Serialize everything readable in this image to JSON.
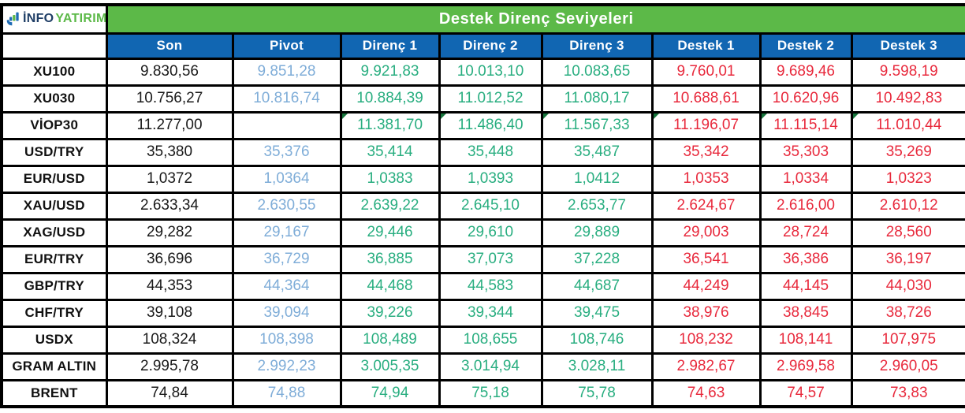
{
  "brand": {
    "name_primary": "İNFO",
    "name_secondary": "YATIRIM"
  },
  "colors": {
    "title_green": "#5CB948",
    "header_blue": "#1166B2",
    "pivot_blue": "#7FADD8",
    "resistance_green": "#29AE80",
    "support_red": "#E8293C",
    "text_black": "#1A1A1A",
    "brand_navy": "#1F3E66",
    "brand_green": "#5CB948",
    "mark_green": "#17753C"
  },
  "chart_data": {
    "type": "table",
    "title": "Destek Direnç Seviyeleri",
    "column_headers": [
      "Son",
      "Pivot",
      "Direnç 1",
      "Direnç 2",
      "Direnç 3",
      "Destek 1",
      "Destek 2",
      "Destek 3"
    ],
    "row_headers": [
      "XU100",
      "XU030",
      "VİOP30",
      "USD/TRY",
      "EUR/USD",
      "XAU/USD",
      "XAG/USD",
      "EUR/TRY",
      "GBP/TRY",
      "CHF/TRY",
      "USDX",
      "GRAM ALTIN",
      "BRENT"
    ],
    "rows": [
      [
        "9.830,56",
        "9.851,28",
        "9.921,83",
        "10.013,10",
        "10.083,65",
        "9.760,01",
        "9.689,46",
        "9.598,19"
      ],
      [
        "10.756,27",
        "10.816,74",
        "10.884,39",
        "11.012,52",
        "11.080,17",
        "10.688,61",
        "10.620,96",
        "10.492,83"
      ],
      [
        "11.277,00",
        "",
        "11.381,70",
        "11.486,40",
        "11.567,33",
        "11.196,07",
        "11.115,14",
        "11.010,44"
      ],
      [
        "35,380",
        "35,376",
        "35,414",
        "35,448",
        "35,487",
        "35,342",
        "35,303",
        "35,269"
      ],
      [
        "1,0372",
        "1,0364",
        "1,0383",
        "1,0393",
        "1,0412",
        "1,0353",
        "1,0334",
        "1,0323"
      ],
      [
        "2.633,34",
        "2.630,55",
        "2.639,22",
        "2.645,10",
        "2.653,77",
        "2.624,67",
        "2.616,00",
        "2.610,12"
      ],
      [
        "29,282",
        "29,167",
        "29,446",
        "29,610",
        "29,889",
        "29,003",
        "28,724",
        "28,560"
      ],
      [
        "36,696",
        "36,729",
        "36,885",
        "37,073",
        "37,228",
        "36,541",
        "36,386",
        "36,197"
      ],
      [
        "44,353",
        "44,364",
        "44,468",
        "44,583",
        "44,687",
        "44,249",
        "44,145",
        "44,030"
      ],
      [
        "39,108",
        "39,094",
        "39,226",
        "39,344",
        "39,475",
        "38,976",
        "38,845",
        "38,726"
      ],
      [
        "108,324",
        "108,398",
        "108,489",
        "108,655",
        "108,746",
        "108,232",
        "108,141",
        "107,975"
      ],
      [
        "2.995,78",
        "2.992,23",
        "3.005,35",
        "3.014,94",
        "3.028,11",
        "2.982,67",
        "2.969,58",
        "2.960,05"
      ],
      [
        "74,84",
        "74,88",
        "74,94",
        "75,18",
        "75,78",
        "74,63",
        "74,57",
        "73,83"
      ]
    ]
  },
  "corner_marks": {
    "row_index": 2,
    "cell_indices": [
      2,
      3,
      4,
      5,
      6,
      7
    ]
  }
}
